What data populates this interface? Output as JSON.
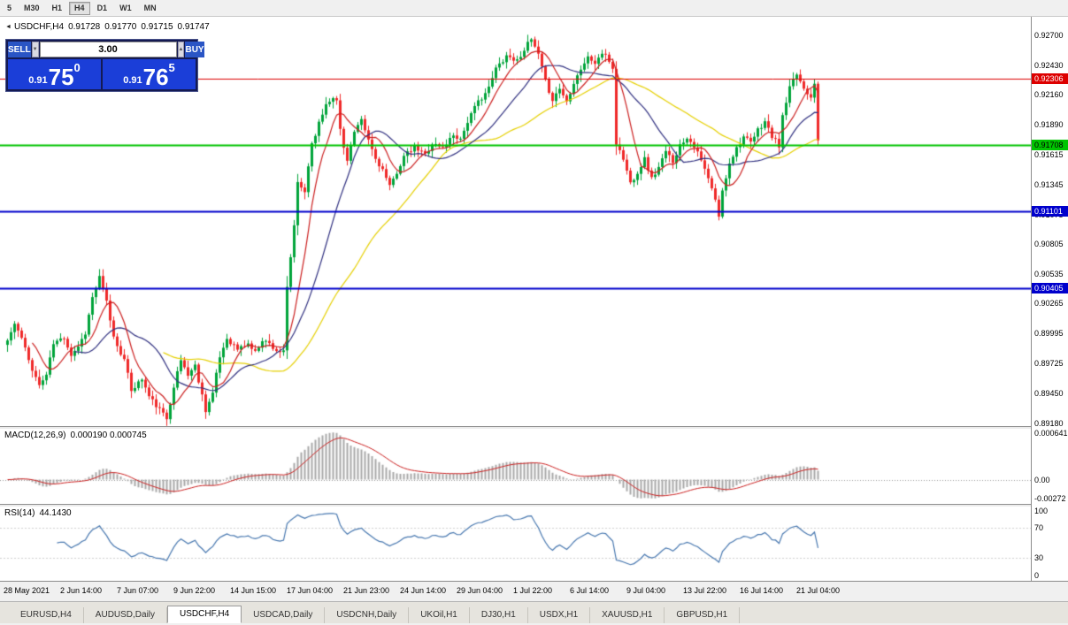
{
  "toolbar": {
    "timeframes": [
      "5",
      "M30",
      "H1",
      "H4",
      "D1",
      "W1",
      "MN"
    ],
    "active_timeframe": "H4"
  },
  "chart": {
    "title": {
      "collapse_icon": "◄",
      "symbol": "USDCHF,H4",
      "open": "0.91728",
      "high": "0.91770",
      "low": "0.91715",
      "close": "0.91747"
    },
    "one_click": {
      "sell_label": "SELL",
      "buy_label": "BUY",
      "volume": "3.00",
      "spin_up_icon": "▲",
      "spin_down_icon": "▼",
      "sell_price": {
        "prefix": "0.91",
        "big": "75",
        "sup": "0"
      },
      "buy_price": {
        "prefix": "0.91",
        "big": "76",
        "sup": "5"
      }
    },
    "price_range": {
      "max": 0.9287,
      "min": 0.8916
    },
    "price_axis_labels": [
      "0.92700",
      "0.92430",
      "0.92160",
      "0.91890",
      "0.91615",
      "0.91345",
      "0.91075",
      "0.90805",
      "0.90535",
      "0.90265",
      "0.89995",
      "0.89725",
      "0.89450",
      "0.89180"
    ],
    "hlines": [
      {
        "price": 0.92306,
        "label": "0.92306",
        "color": "#dd0000",
        "text_color": "#ffffff",
        "width": 1
      },
      {
        "price": 0.91708,
        "label": "0.91708",
        "color": "#00c400",
        "text_color": "#000000",
        "width": 2
      },
      {
        "price": 0.91101,
        "label": "0.91101",
        "color": "#0000cc",
        "text_color": "#ffffff",
        "width": 2
      },
      {
        "price": 0.90405,
        "label": "0.90405",
        "color": "#0000cc",
        "text_color": "#ffffff",
        "width": 2
      }
    ],
    "time_axis": [
      "28 May 2021",
      "2 Jun 14:00",
      "7 Jun 07:00",
      "9 Jun 22:00",
      "14 Jun 15:00",
      "17 Jun 04:00",
      "21 Jun 23:00",
      "24 Jun 14:00",
      "29 Jun 04:00",
      "1 Jul 22:00",
      "6 Jul 14:00",
      "9 Jul 04:00",
      "13 Jul 22:00",
      "16 Jul 14:00",
      "21 Jul 04:00"
    ]
  },
  "macd": {
    "name": "MACD(12,26,9)",
    "values": "0.000190 0.000745",
    "params": {
      "fast": 12,
      "slow": 26,
      "signal": 9
    },
    "axis_labels": [
      "0.000641",
      "0.00",
      "-0.00272"
    ]
  },
  "rsi": {
    "name": "RSI(14)",
    "value": "44.1430",
    "period": 14,
    "axis_labels": [
      {
        "v": 100,
        "t": "100"
      },
      {
        "v": 70,
        "t": "70"
      },
      {
        "v": 30,
        "t": "30"
      },
      {
        "v": 0,
        "t": "0"
      }
    ]
  },
  "tabs": {
    "items": [
      "EURUSD,H4",
      "AUDUSD,Daily",
      "USDCHF,H4",
      "USDCAD,Daily",
      "USDCNH,Daily",
      "UKOil,H1",
      "DJ30,H1",
      "USDX,H1",
      "XAUUSD,H1",
      "GBPUSD,H1"
    ],
    "active": "USDCHF,H4"
  },
  "chart_data": {
    "type": "candlestick",
    "symbol": "USDCHF",
    "timeframe": "H4",
    "bars": 230,
    "close_anchors": [
      [
        0,
        0.8993
      ],
      [
        2,
        0.9008
      ],
      [
        4,
        0.8995
      ],
      [
        6,
        0.8975
      ],
      [
        9,
        0.8952
      ],
      [
        11,
        0.8962
      ],
      [
        13,
        0.899
      ],
      [
        16,
        0.8996
      ],
      [
        18,
        0.898
      ],
      [
        20,
        0.8988
      ],
      [
        22,
        0.9
      ],
      [
        24,
        0.9032
      ],
      [
        26,
        0.905
      ],
      [
        28,
        0.9028
      ],
      [
        30,
        0.8996
      ],
      [
        33,
        0.8975
      ],
      [
        35,
        0.8948
      ],
      [
        38,
        0.8958
      ],
      [
        40,
        0.8942
      ],
      [
        43,
        0.893
      ],
      [
        45,
        0.8922
      ],
      [
        47,
        0.8952
      ],
      [
        49,
        0.8975
      ],
      [
        51,
        0.8962
      ],
      [
        53,
        0.897
      ],
      [
        56,
        0.893
      ],
      [
        58,
        0.8945
      ],
      [
        60,
        0.8978
      ],
      [
        62,
        0.8995
      ],
      [
        65,
        0.8985
      ],
      [
        68,
        0.899
      ],
      [
        70,
        0.8982
      ],
      [
        72,
        0.8994
      ],
      [
        74,
        0.899
      ],
      [
        76,
        0.8984
      ],
      [
        78,
        0.8982
      ],
      [
        79,
        0.904
      ],
      [
        80,
        0.9068
      ],
      [
        81,
        0.9098
      ],
      [
        82,
        0.9135
      ],
      [
        84,
        0.9128
      ],
      [
        85,
        0.9152
      ],
      [
        86,
        0.9172
      ],
      [
        88,
        0.919
      ],
      [
        90,
        0.9208
      ],
      [
        92,
        0.9215
      ],
      [
        93,
        0.921
      ],
      [
        94,
        0.9185
      ],
      [
        95,
        0.9168
      ],
      [
        96,
        0.9158
      ],
      [
        98,
        0.9182
      ],
      [
        100,
        0.9192
      ],
      [
        102,
        0.9175
      ],
      [
        104,
        0.9158
      ],
      [
        106,
        0.9148
      ],
      [
        108,
        0.9132
      ],
      [
        110,
        0.9146
      ],
      [
        112,
        0.916
      ],
      [
        115,
        0.9168
      ],
      [
        118,
        0.9162
      ],
      [
        120,
        0.9172
      ],
      [
        123,
        0.9168
      ],
      [
        126,
        0.918
      ],
      [
        128,
        0.9176
      ],
      [
        130,
        0.9192
      ],
      [
        133,
        0.921
      ],
      [
        136,
        0.9222
      ],
      [
        138,
        0.924
      ],
      [
        141,
        0.9252
      ],
      [
        144,
        0.9247
      ],
      [
        146,
        0.9258
      ],
      [
        148,
        0.9266
      ],
      [
        150,
        0.9252
      ],
      [
        152,
        0.9228
      ],
      [
        154,
        0.9212
      ],
      [
        156,
        0.9222
      ],
      [
        158,
        0.921
      ],
      [
        160,
        0.9228
      ],
      [
        162,
        0.924
      ],
      [
        164,
        0.925
      ],
      [
        166,
        0.9245
      ],
      [
        168,
        0.9254
      ],
      [
        170,
        0.9247
      ],
      [
        171,
        0.924
      ],
      [
        172,
        0.9172
      ],
      [
        174,
        0.9158
      ],
      [
        176,
        0.9136
      ],
      [
        178,
        0.9146
      ],
      [
        180,
        0.9158
      ],
      [
        182,
        0.914
      ],
      [
        184,
        0.915
      ],
      [
        186,
        0.9164
      ],
      [
        188,
        0.9156
      ],
      [
        190,
        0.917
      ],
      [
        192,
        0.9178
      ],
      [
        194,
        0.917
      ],
      [
        196,
        0.9156
      ],
      [
        198,
        0.914
      ],
      [
        200,
        0.912
      ],
      [
        201,
        0.9106
      ],
      [
        202,
        0.9128
      ],
      [
        204,
        0.9155
      ],
      [
        206,
        0.9168
      ],
      [
        208,
        0.9178
      ],
      [
        210,
        0.9172
      ],
      [
        212,
        0.9184
      ],
      [
        214,
        0.9192
      ],
      [
        216,
        0.9178
      ],
      [
        218,
        0.917
      ],
      [
        219,
        0.9196
      ],
      [
        221,
        0.9222
      ],
      [
        223,
        0.9235
      ],
      [
        225,
        0.9222
      ],
      [
        227,
        0.9215
      ],
      [
        228,
        0.9228
      ],
      [
        229,
        0.91747
      ]
    ],
    "indicators": {
      "ma_fast_period": 8,
      "ma_mid_period": 20,
      "ma_slow_period": 45
    },
    "colors": {
      "up": "#00a43a",
      "down": "#ef2929",
      "ma_fast": "#cc2020",
      "ma_mid": "#303080",
      "ma_slow": "#e6d000",
      "macd_hist": "#a9a9a9",
      "macd_signal": "#cc2020",
      "rsi": "#4878b0"
    }
  }
}
